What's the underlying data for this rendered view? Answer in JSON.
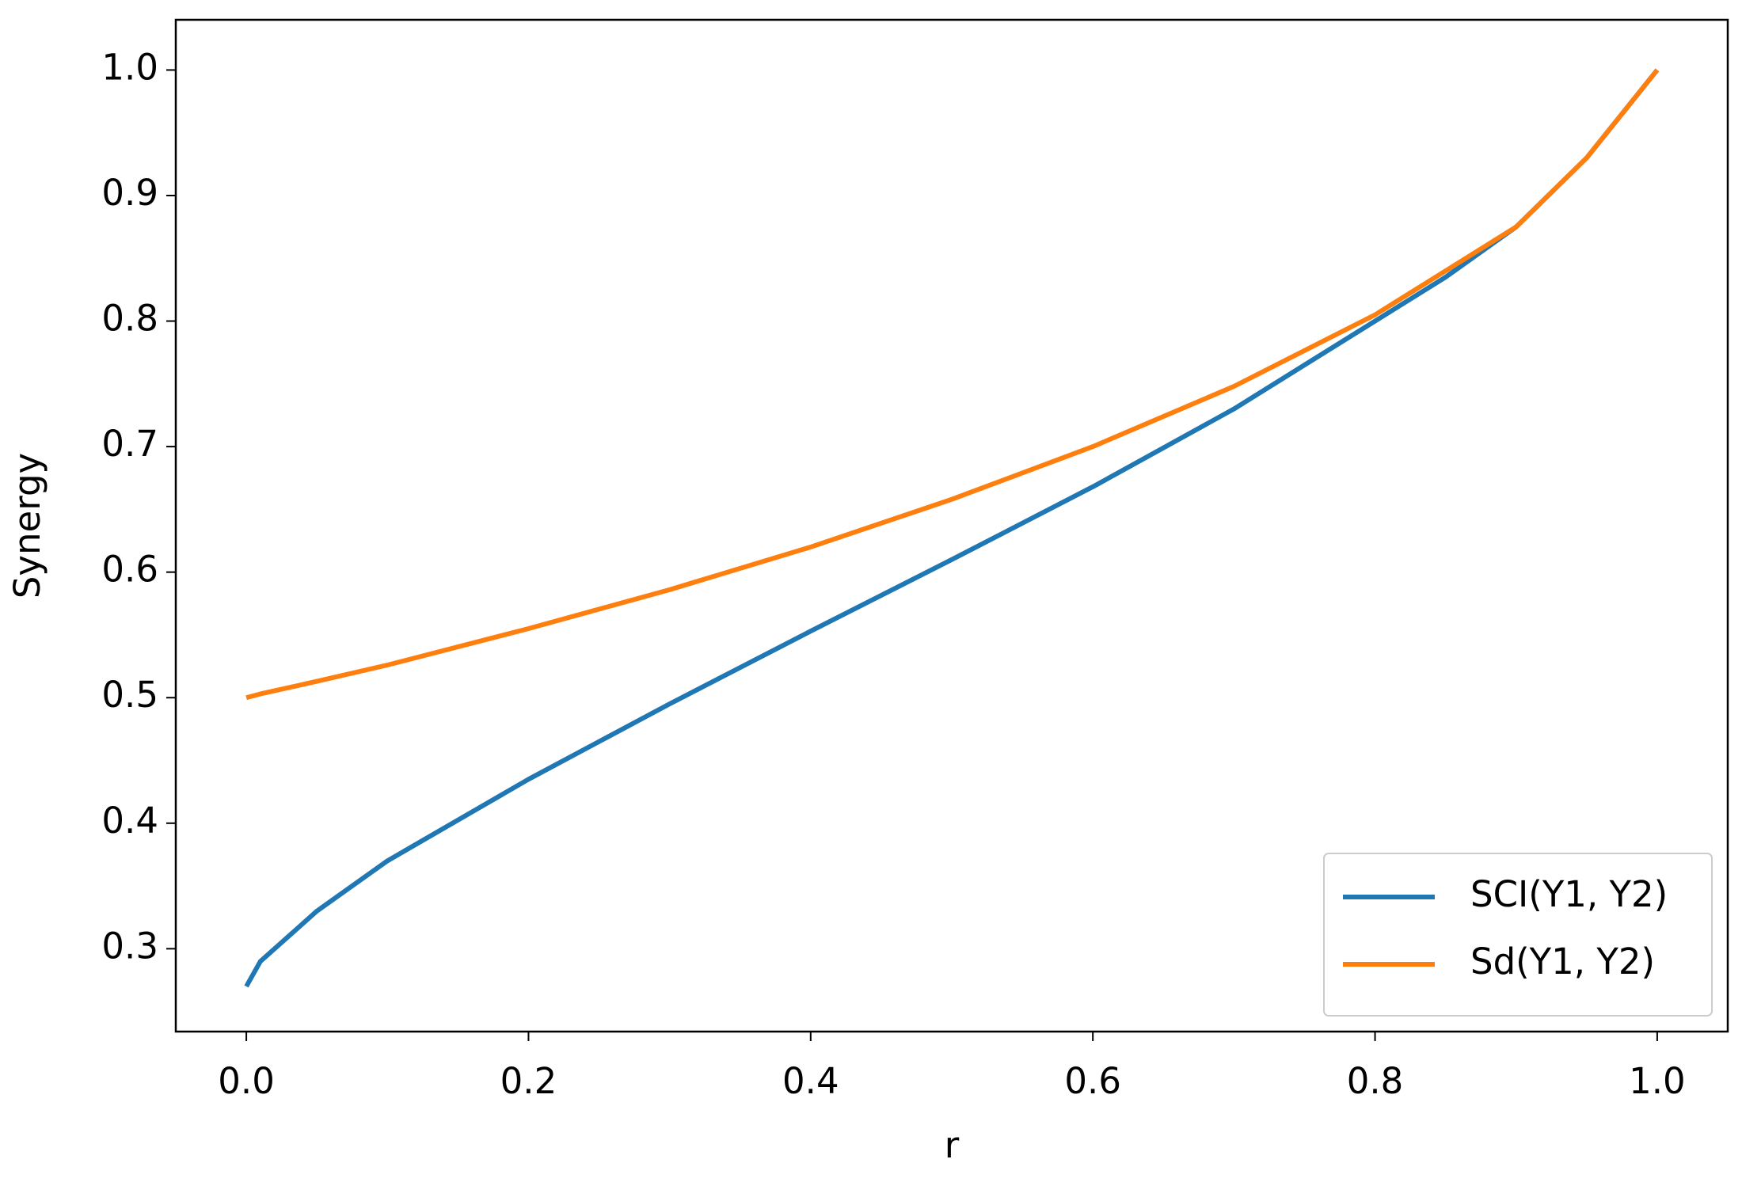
{
  "chart_data": {
    "type": "line",
    "x_label": "r",
    "y_label": "Synergy",
    "x": [
      0,
      0.01,
      0.05,
      0.1,
      0.2,
      0.3,
      0.4,
      0.5,
      0.6,
      0.7,
      0.8,
      0.85,
      0.9,
      0.95,
      1.0
    ],
    "series": [
      {
        "name": "SCI(Y1, Y2)",
        "color": "#1f77b4",
        "values": [
          0.27,
          0.29,
          0.33,
          0.37,
          0.435,
          0.495,
          0.553,
          0.61,
          0.668,
          0.73,
          0.8,
          0.835,
          0.875,
          0.93,
          1.0
        ]
      },
      {
        "name": "Sd(Y1, Y2)",
        "color": "#ff7f0e",
        "values": [
          0.5,
          0.503,
          0.513,
          0.526,
          0.555,
          0.586,
          0.62,
          0.658,
          0.7,
          0.748,
          0.805,
          0.84,
          0.875,
          0.93,
          1.0
        ]
      }
    ],
    "xlim": [
      -0.05,
      1.05
    ],
    "ylim": [
      0.234,
      1.04
    ],
    "xticks": [
      {
        "value": 0,
        "label": "0.0"
      },
      0.2,
      0.4,
      0.6,
      0.8,
      {
        "value": 1,
        "label": "1.0"
      }
    ],
    "yticks": [
      0.3,
      0.4,
      0.5,
      0.6,
      0.7,
      0.8,
      0.9,
      {
        "value": 1,
        "label": "1.0"
      }
    ],
    "grid": false,
    "legend": "lower right"
  }
}
